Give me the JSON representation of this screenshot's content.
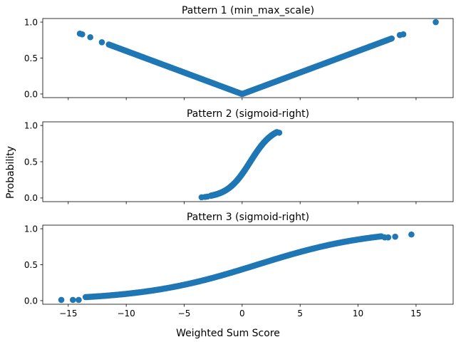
{
  "figure": {
    "xlabel": "Weighted Sum Score",
    "ylabel": "Probability",
    "marker_color": "#1f77b4",
    "x_ticks": [
      -15,
      -10,
      -5,
      0,
      5,
      10,
      15
    ],
    "x_tick_labels": [
      "−15",
      "−10",
      "−5",
      "0",
      "5",
      "10",
      "15"
    ],
    "y_ticks": [
      0.0,
      0.5,
      1.0
    ],
    "y_tick_labels": [
      "0.0",
      "0.5",
      "1.0"
    ]
  },
  "chart_data": [
    {
      "type": "scatter",
      "title": "Pattern 1 (min_max_scale)",
      "xlim": [
        -17.2,
        18.2
      ],
      "ylim": [
        -0.05,
        1.05
      ],
      "pattern": "abs_scaled",
      "x_dense_range": [
        -11.5,
        12.9
      ],
      "peak_abs_x": 16.7,
      "series": [
        {
          "points": [
            [
              -14.0,
              0.84
            ],
            [
              -13.8,
              0.83
            ],
            [
              -13.1,
              0.79
            ],
            [
              -12.1,
              0.72
            ],
            [
              13.6,
              0.82
            ],
            [
              13.9,
              0.83
            ],
            [
              16.7,
              1.0
            ]
          ]
        }
      ]
    },
    {
      "type": "scatter",
      "title": "Pattern 2 (sigmoid-right)",
      "xlim": [
        -17.2,
        18.2
      ],
      "ylim": [
        -0.05,
        1.05
      ],
      "pattern": "sigmoid",
      "sigmoid_center": 0.7,
      "sigmoid_scale": 1.0,
      "x_dense_range": [
        -2.7,
        3.0
      ],
      "series": [
        {
          "points": [
            [
              -3.5,
              0.01
            ],
            [
              -3.2,
              0.015
            ],
            [
              -3.0,
              0.02
            ],
            [
              3.2,
              0.9
            ]
          ]
        }
      ]
    },
    {
      "type": "scatter",
      "title": "Pattern 3 (sigmoid-right)",
      "xlim": [
        -17.2,
        18.2
      ],
      "ylim": [
        -0.05,
        1.05
      ],
      "pattern": "sigmoid",
      "sigmoid_center": 1.3,
      "sigmoid_scale": 5.0,
      "x_dense_range": [
        -13.5,
        12.0
      ],
      "series": [
        {
          "points": [
            [
              -15.6,
              0.01
            ],
            [
              -14.6,
              0.01
            ],
            [
              -14.1,
              0.01
            ],
            [
              12.3,
              0.88
            ],
            [
              12.6,
              0.88
            ],
            [
              13.2,
              0.89
            ],
            [
              14.6,
              0.92
            ]
          ]
        }
      ]
    }
  ]
}
